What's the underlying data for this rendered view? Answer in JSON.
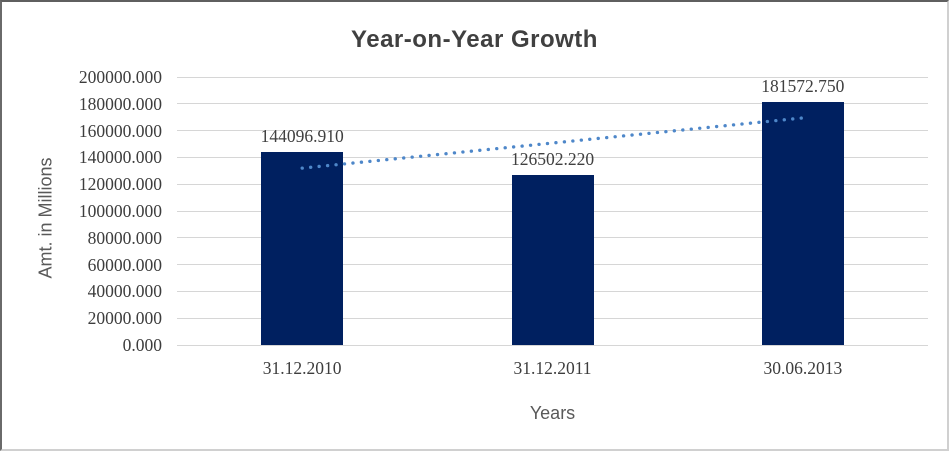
{
  "chart_data": {
    "type": "bar",
    "title": "Year-on-Year Growth",
    "xlabel": "Years",
    "ylabel": "Amt. in Millions",
    "categories": [
      "31.12.2010",
      "31.12.2011",
      "30.06.2013"
    ],
    "values": [
      144096.91,
      126502.22,
      181572.75
    ],
    "data_labels": [
      "144096.910",
      "126502.220",
      "181572.750"
    ],
    "ylim": [
      0,
      200000
    ],
    "ytick_step": 20000,
    "ytick_labels": [
      "0.000",
      "20000.000",
      "40000.000",
      "60000.000",
      "80000.000",
      "100000.000",
      "120000.000",
      "140000.000",
      "160000.000",
      "180000.000",
      "200000.000"
    ],
    "grid": "horizontal",
    "legend_position": "none",
    "trendline": {
      "type": "linear",
      "style": "dotted"
    },
    "colors": {
      "bar": "#002060",
      "trendline": "#4E87C9",
      "gridline": "#D6D6D6",
      "title_text": "#404040",
      "tick_text": "#3D3D3D",
      "axis_title_text": "#595959",
      "background": "#FFFFFF"
    }
  }
}
